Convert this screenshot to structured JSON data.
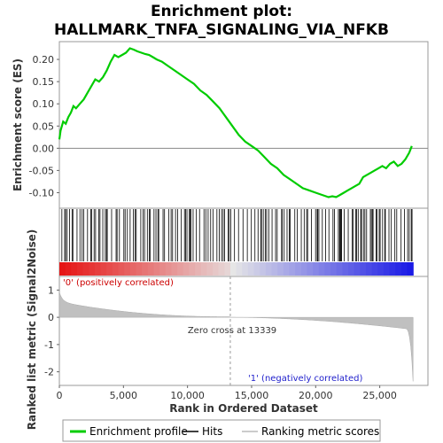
{
  "chart_data": {
    "type": "line",
    "title_line1": "Enrichment plot:",
    "title_line2": "HALLMARK_TNFA_SIGNALING_VIA_NFKB",
    "ylabel_top": "Enrichment score (ES)",
    "ylabel_bottom": "Ranked list metric (Signal2Noise)",
    "xlabel": "Rank in Ordered Dataset",
    "xlim": [
      0,
      28000
    ],
    "xticks": [
      0,
      5000,
      10000,
      15000,
      20000,
      25000
    ],
    "xtick_labels": [
      "0",
      "5,000",
      "10,000",
      "15,000",
      "20,000",
      "25,000"
    ],
    "es_ylim": [
      -0.135,
      0.24
    ],
    "es_yticks": [
      -0.1,
      -0.05,
      0.0,
      0.05,
      0.1,
      0.15,
      0.2
    ],
    "es_ytick_labels": [
      "-0.10",
      "-0.05",
      "0.00",
      "0.05",
      "0.10",
      "0.15",
      "0.20"
    ],
    "metric_ylim": [
      -2.5,
      1.5
    ],
    "metric_yticks": [
      -2,
      -1,
      0,
      1
    ],
    "metric_ytick_labels": [
      "-2",
      "-1",
      "0",
      "1"
    ],
    "zero_cross_rank": 13339,
    "zero_cross_label": "Zero cross at 13339",
    "pos_label": "'0' (positively correlated)",
    "neg_label": "'1' (negatively correlated)",
    "n_ranks": 27600,
    "es_profile": {
      "x": [
        0,
        100,
        300,
        500,
        700,
        900,
        1100,
        1300,
        1600,
        1900,
        2200,
        2500,
        2800,
        3100,
        3400,
        3700,
        4000,
        4300,
        4600,
        4900,
        5200,
        5500,
        5800,
        6100,
        6400,
        6700,
        7000,
        7300,
        7600,
        8000,
        8500,
        9000,
        9500,
        10000,
        10500,
        11000,
        11500,
        12000,
        12500,
        13000,
        13500,
        14000,
        14500,
        15000,
        15500,
        16000,
        16500,
        17000,
        17500,
        18000,
        18500,
        19000,
        19500,
        20000,
        20500,
        21000,
        21300,
        21600,
        21900,
        22200,
        22500,
        22800,
        23100,
        23400,
        23700,
        24000,
        24300,
        24600,
        24900,
        25200,
        25500,
        25800,
        26100,
        26400,
        26700,
        27000,
        27300,
        27500
      ],
      "y": [
        0.02,
        0.04,
        0.06,
        0.055,
        0.07,
        0.08,
        0.095,
        0.09,
        0.1,
        0.11,
        0.125,
        0.14,
        0.155,
        0.15,
        0.16,
        0.175,
        0.195,
        0.21,
        0.205,
        0.21,
        0.215,
        0.225,
        0.222,
        0.218,
        0.215,
        0.212,
        0.21,
        0.205,
        0.2,
        0.195,
        0.185,
        0.175,
        0.165,
        0.155,
        0.145,
        0.13,
        0.12,
        0.105,
        0.09,
        0.07,
        0.05,
        0.03,
        0.015,
        0.005,
        -0.005,
        -0.02,
        -0.035,
        -0.045,
        -0.06,
        -0.07,
        -0.08,
        -0.09,
        -0.095,
        -0.1,
        -0.105,
        -0.11,
        -0.108,
        -0.11,
        -0.105,
        -0.1,
        -0.095,
        -0.09,
        -0.085,
        -0.08,
        -0.065,
        -0.06,
        -0.055,
        -0.05,
        -0.045,
        -0.04,
        -0.045,
        -0.035,
        -0.03,
        -0.04,
        -0.035,
        -0.025,
        -0.01,
        0.005
      ]
    },
    "hits_region_colors": {
      "pos": "#dd1111",
      "neg": "#2222cc"
    },
    "profile_color": "#00cc00",
    "legend": [
      {
        "name": "Enrichment profile",
        "color": "#00cc00",
        "kind": "line"
      },
      {
        "name": "Hits",
        "color": "#000000",
        "kind": "line"
      },
      {
        "name": "Ranking metric scores",
        "color": "#bbbbbb",
        "kind": "line"
      }
    ]
  }
}
